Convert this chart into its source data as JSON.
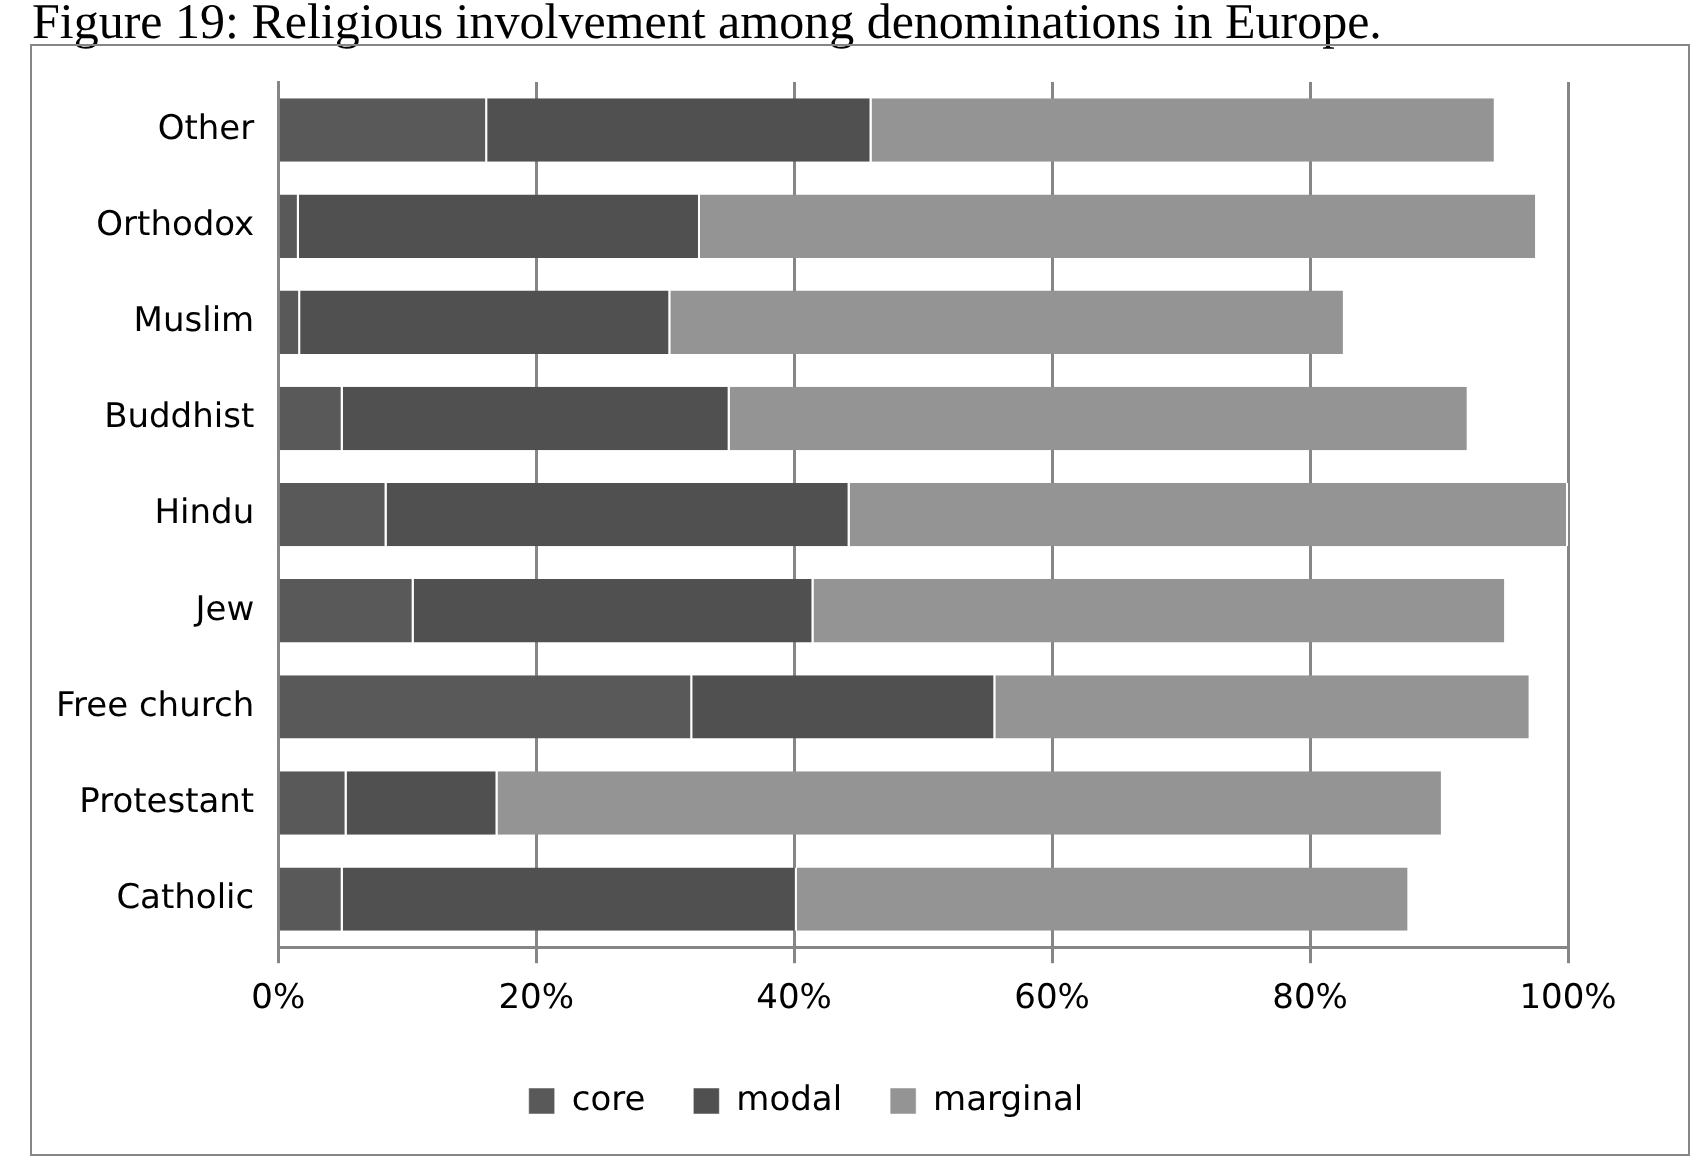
{
  "chart_data": {
    "type": "bar",
    "orientation": "horizontal",
    "stacked": true,
    "title": "Figure 19: Religious involvement among denominations in Europe.",
    "categories": [
      "Other",
      "Orthodox",
      "Muslim",
      "Buddhist",
      "Hindu",
      "Jew",
      "Free church",
      "Protestant",
      "Catholic"
    ],
    "series": [
      {
        "name": "core",
        "color": "#595959",
        "values": [
          16.2,
          1.6,
          1.7,
          5.0,
          8.4,
          10.5,
          32.1,
          5.3,
          5.0
        ]
      },
      {
        "name": "modal",
        "color": "#505050",
        "values": [
          29.8,
          31.1,
          28.7,
          30.0,
          35.9,
          31.0,
          23.5,
          11.7,
          35.2
        ]
      },
      {
        "name": "marginal",
        "color": "#949494",
        "values": [
          48.4,
          64.9,
          52.3,
          57.3,
          55.7,
          53.7,
          41.5,
          73.3,
          47.5
        ]
      }
    ],
    "xlim": [
      0,
      100
    ],
    "xticks": [
      {
        "value": 0,
        "label": "0%"
      },
      {
        "value": 20,
        "label": "20%"
      },
      {
        "value": 40,
        "label": "40%"
      },
      {
        "value": 60,
        "label": "60%"
      },
      {
        "value": 80,
        "label": "80%"
      },
      {
        "value": 100,
        "label": "100%"
      }
    ],
    "grid": "x",
    "legend": "bottom"
  }
}
